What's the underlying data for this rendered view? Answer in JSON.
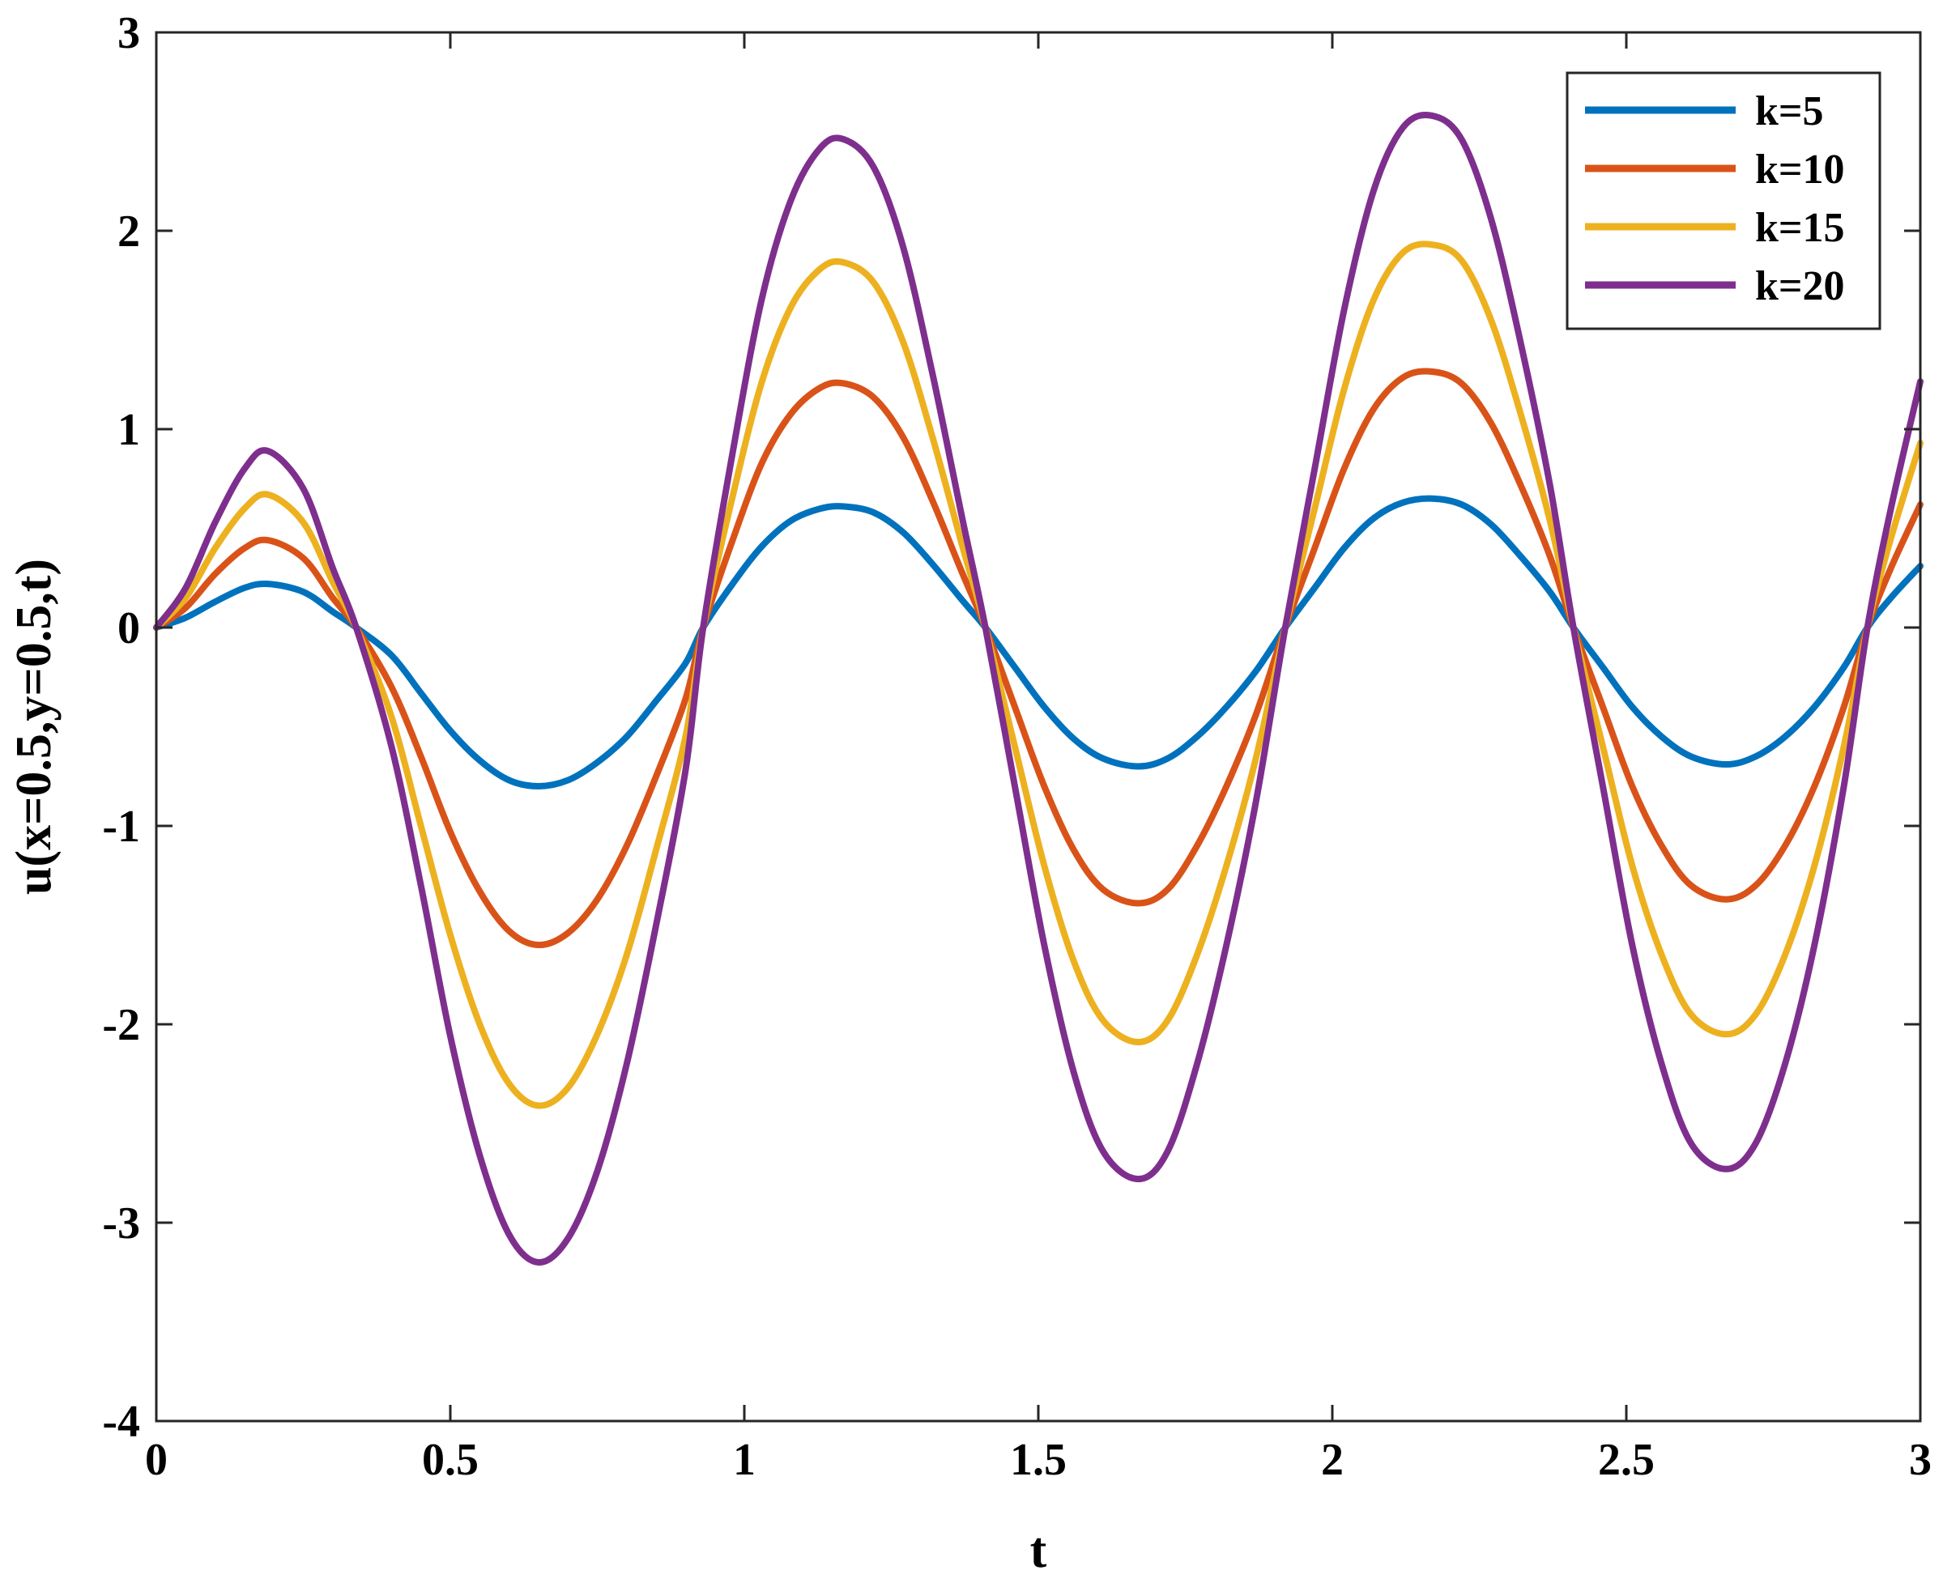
{
  "chart_data": {
    "type": "line",
    "title": "",
    "xlabel": "t",
    "ylabel": "u(x=0.5,y=0.5,t)",
    "xlim": [
      0,
      3
    ],
    "ylim": [
      -4,
      3
    ],
    "xticks": [
      0,
      0.5,
      1,
      1.5,
      2,
      2.5,
      3
    ],
    "xtick_labels": [
      "0",
      "0.5",
      "1",
      "1.5",
      "2",
      "2.5",
      "3"
    ],
    "yticks": [
      -4,
      -3,
      -2,
      -1,
      0,
      1,
      2,
      3
    ],
    "ytick_labels": [
      "-4",
      "-3",
      "-2",
      "-1",
      "0",
      "1",
      "2",
      "3"
    ],
    "grid": false,
    "legend_position": "top-right",
    "series": [
      {
        "name": "k=5",
        "color": "#0072BD",
        "points": [
          [
            0,
            0
          ],
          [
            0.05,
            0.05
          ],
          [
            0.1,
            0.13
          ],
          [
            0.15,
            0.2
          ],
          [
            0.19,
            0.22
          ],
          [
            0.25,
            0.18
          ],
          [
            0.3,
            0.08
          ],
          [
            0.34,
            0
          ],
          [
            0.4,
            -0.14
          ],
          [
            0.45,
            -0.33
          ],
          [
            0.5,
            -0.52
          ],
          [
            0.55,
            -0.67
          ],
          [
            0.6,
            -0.77
          ],
          [
            0.65,
            -0.8
          ],
          [
            0.7,
            -0.77
          ],
          [
            0.75,
            -0.68
          ],
          [
            0.8,
            -0.55
          ],
          [
            0.85,
            -0.37
          ],
          [
            0.9,
            -0.18
          ],
          [
            0.93,
            0
          ],
          [
            0.98,
            0.22
          ],
          [
            1.03,
            0.41
          ],
          [
            1.08,
            0.54
          ],
          [
            1.13,
            0.6
          ],
          [
            1.17,
            0.61
          ],
          [
            1.22,
            0.58
          ],
          [
            1.27,
            0.48
          ],
          [
            1.32,
            0.32
          ],
          [
            1.37,
            0.14
          ],
          [
            1.41,
            0
          ],
          [
            1.46,
            -0.2
          ],
          [
            1.51,
            -0.4
          ],
          [
            1.56,
            -0.56
          ],
          [
            1.61,
            -0.66
          ],
          [
            1.67,
            -0.7
          ],
          [
            1.72,
            -0.66
          ],
          [
            1.77,
            -0.55
          ],
          [
            1.82,
            -0.4
          ],
          [
            1.87,
            -0.22
          ],
          [
            1.92,
            0
          ],
          [
            1.97,
            0.2
          ],
          [
            2.02,
            0.4
          ],
          [
            2.07,
            0.55
          ],
          [
            2.12,
            0.63
          ],
          [
            2.17,
            0.65
          ],
          [
            2.22,
            0.62
          ],
          [
            2.27,
            0.52
          ],
          [
            2.32,
            0.36
          ],
          [
            2.37,
            0.18
          ],
          [
            2.41,
            0
          ],
          [
            2.46,
            -0.2
          ],
          [
            2.51,
            -0.4
          ],
          [
            2.56,
            -0.55
          ],
          [
            2.61,
            -0.65
          ],
          [
            2.67,
            -0.69
          ],
          [
            2.72,
            -0.65
          ],
          [
            2.77,
            -0.55
          ],
          [
            2.82,
            -0.4
          ],
          [
            2.87,
            -0.2
          ],
          [
            2.91,
            0
          ],
          [
            2.95,
            0.15
          ],
          [
            3.0,
            0.31
          ]
        ]
      },
      {
        "name": "k=10",
        "color": "#D95319",
        "points": [
          [
            0,
            0
          ],
          [
            0.05,
            0.1
          ],
          [
            0.1,
            0.27
          ],
          [
            0.15,
            0.4
          ],
          [
            0.19,
            0.44
          ],
          [
            0.25,
            0.35
          ],
          [
            0.3,
            0.15
          ],
          [
            0.34,
            0
          ],
          [
            0.4,
            -0.3
          ],
          [
            0.45,
            -0.65
          ],
          [
            0.5,
            -1.03
          ],
          [
            0.55,
            -1.33
          ],
          [
            0.6,
            -1.53
          ],
          [
            0.65,
            -1.6
          ],
          [
            0.7,
            -1.54
          ],
          [
            0.75,
            -1.37
          ],
          [
            0.8,
            -1.1
          ],
          [
            0.85,
            -0.75
          ],
          [
            0.9,
            -0.36
          ],
          [
            0.93,
            0
          ],
          [
            0.98,
            0.44
          ],
          [
            1.03,
            0.83
          ],
          [
            1.08,
            1.08
          ],
          [
            1.13,
            1.21
          ],
          [
            1.17,
            1.23
          ],
          [
            1.22,
            1.16
          ],
          [
            1.27,
            0.96
          ],
          [
            1.32,
            0.64
          ],
          [
            1.37,
            0.28
          ],
          [
            1.41,
            0
          ],
          [
            1.46,
            -0.4
          ],
          [
            1.51,
            -0.8
          ],
          [
            1.56,
            -1.12
          ],
          [
            1.61,
            -1.32
          ],
          [
            1.67,
            -1.39
          ],
          [
            1.72,
            -1.32
          ],
          [
            1.77,
            -1.1
          ],
          [
            1.82,
            -0.8
          ],
          [
            1.87,
            -0.44
          ],
          [
            1.92,
            0
          ],
          [
            1.97,
            0.4
          ],
          [
            2.02,
            0.8
          ],
          [
            2.07,
            1.1
          ],
          [
            2.12,
            1.26
          ],
          [
            2.17,
            1.29
          ],
          [
            2.22,
            1.23
          ],
          [
            2.27,
            1.03
          ],
          [
            2.32,
            0.72
          ],
          [
            2.37,
            0.36
          ],
          [
            2.41,
            0
          ],
          [
            2.46,
            -0.4
          ],
          [
            2.51,
            -0.8
          ],
          [
            2.56,
            -1.1
          ],
          [
            2.61,
            -1.3
          ],
          [
            2.67,
            -1.37
          ],
          [
            2.72,
            -1.3
          ],
          [
            2.77,
            -1.1
          ],
          [
            2.82,
            -0.8
          ],
          [
            2.87,
            -0.4
          ],
          [
            2.91,
            0
          ],
          [
            2.95,
            0.3
          ],
          [
            3.0,
            0.62
          ]
        ]
      },
      {
        "name": "k=15",
        "color": "#EDB120",
        "points": [
          [
            0,
            0
          ],
          [
            0.05,
            0.15
          ],
          [
            0.1,
            0.4
          ],
          [
            0.15,
            0.6
          ],
          [
            0.19,
            0.67
          ],
          [
            0.25,
            0.53
          ],
          [
            0.3,
            0.23
          ],
          [
            0.34,
            0
          ],
          [
            0.4,
            -0.45
          ],
          [
            0.45,
            -1.0
          ],
          [
            0.5,
            -1.55
          ],
          [
            0.55,
            -2.0
          ],
          [
            0.6,
            -2.3
          ],
          [
            0.65,
            -2.41
          ],
          [
            0.7,
            -2.32
          ],
          [
            0.75,
            -2.05
          ],
          [
            0.8,
            -1.65
          ],
          [
            0.85,
            -1.12
          ],
          [
            0.9,
            -0.55
          ],
          [
            0.93,
            0
          ],
          [
            0.98,
            0.66
          ],
          [
            1.03,
            1.24
          ],
          [
            1.08,
            1.62
          ],
          [
            1.13,
            1.81
          ],
          [
            1.17,
            1.84
          ],
          [
            1.22,
            1.74
          ],
          [
            1.27,
            1.44
          ],
          [
            1.32,
            0.96
          ],
          [
            1.37,
            0.42
          ],
          [
            1.41,
            0
          ],
          [
            1.46,
            -0.6
          ],
          [
            1.51,
            -1.2
          ],
          [
            1.56,
            -1.68
          ],
          [
            1.61,
            -1.98
          ],
          [
            1.67,
            -2.09
          ],
          [
            1.72,
            -1.98
          ],
          [
            1.77,
            -1.65
          ],
          [
            1.82,
            -1.2
          ],
          [
            1.87,
            -0.66
          ],
          [
            1.92,
            0
          ],
          [
            1.97,
            0.6
          ],
          [
            2.02,
            1.2
          ],
          [
            2.07,
            1.65
          ],
          [
            2.12,
            1.89
          ],
          [
            2.17,
            1.93
          ],
          [
            2.22,
            1.85
          ],
          [
            2.27,
            1.55
          ],
          [
            2.32,
            1.08
          ],
          [
            2.37,
            0.54
          ],
          [
            2.41,
            0
          ],
          [
            2.46,
            -0.6
          ],
          [
            2.51,
            -1.2
          ],
          [
            2.56,
            -1.65
          ],
          [
            2.61,
            -1.95
          ],
          [
            2.67,
            -2.05
          ],
          [
            2.72,
            -1.95
          ],
          [
            2.77,
            -1.65
          ],
          [
            2.82,
            -1.2
          ],
          [
            2.87,
            -0.6
          ],
          [
            2.91,
            0
          ],
          [
            2.95,
            0.45
          ],
          [
            3.0,
            0.93
          ]
        ]
      },
      {
        "name": "k=20",
        "color": "#7E2F8E",
        "points": [
          [
            0,
            0
          ],
          [
            0.05,
            0.2
          ],
          [
            0.1,
            0.53
          ],
          [
            0.15,
            0.8
          ],
          [
            0.19,
            0.89
          ],
          [
            0.25,
            0.7
          ],
          [
            0.3,
            0.3
          ],
          [
            0.34,
            0
          ],
          [
            0.4,
            -0.6
          ],
          [
            0.45,
            -1.3
          ],
          [
            0.5,
            -2.06
          ],
          [
            0.55,
            -2.66
          ],
          [
            0.6,
            -3.06
          ],
          [
            0.65,
            -3.2
          ],
          [
            0.7,
            -3.08
          ],
          [
            0.75,
            -2.74
          ],
          [
            0.8,
            -2.2
          ],
          [
            0.85,
            -1.5
          ],
          [
            0.9,
            -0.72
          ],
          [
            0.93,
            0
          ],
          [
            0.98,
            0.88
          ],
          [
            1.03,
            1.66
          ],
          [
            1.08,
            2.16
          ],
          [
            1.13,
            2.42
          ],
          [
            1.17,
            2.46
          ],
          [
            1.22,
            2.32
          ],
          [
            1.27,
            1.92
          ],
          [
            1.32,
            1.28
          ],
          [
            1.37,
            0.56
          ],
          [
            1.41,
            0
          ],
          [
            1.46,
            -0.8
          ],
          [
            1.51,
            -1.6
          ],
          [
            1.56,
            -2.24
          ],
          [
            1.61,
            -2.64
          ],
          [
            1.67,
            -2.78
          ],
          [
            1.72,
            -2.64
          ],
          [
            1.77,
            -2.2
          ],
          [
            1.82,
            -1.6
          ],
          [
            1.87,
            -0.88
          ],
          [
            1.92,
            0
          ],
          [
            1.97,
            0.8
          ],
          [
            2.02,
            1.6
          ],
          [
            2.07,
            2.2
          ],
          [
            2.12,
            2.52
          ],
          [
            2.17,
            2.58
          ],
          [
            2.22,
            2.46
          ],
          [
            2.27,
            2.06
          ],
          [
            2.32,
            1.44
          ],
          [
            2.37,
            0.72
          ],
          [
            2.41,
            0
          ],
          [
            2.46,
            -0.8
          ],
          [
            2.51,
            -1.6
          ],
          [
            2.56,
            -2.2
          ],
          [
            2.61,
            -2.6
          ],
          [
            2.67,
            -2.73
          ],
          [
            2.72,
            -2.6
          ],
          [
            2.77,
            -2.2
          ],
          [
            2.82,
            -1.6
          ],
          [
            2.87,
            -0.8
          ],
          [
            2.91,
            0
          ],
          [
            2.95,
            0.6
          ],
          [
            3.0,
            1.24
          ]
        ]
      }
    ]
  }
}
